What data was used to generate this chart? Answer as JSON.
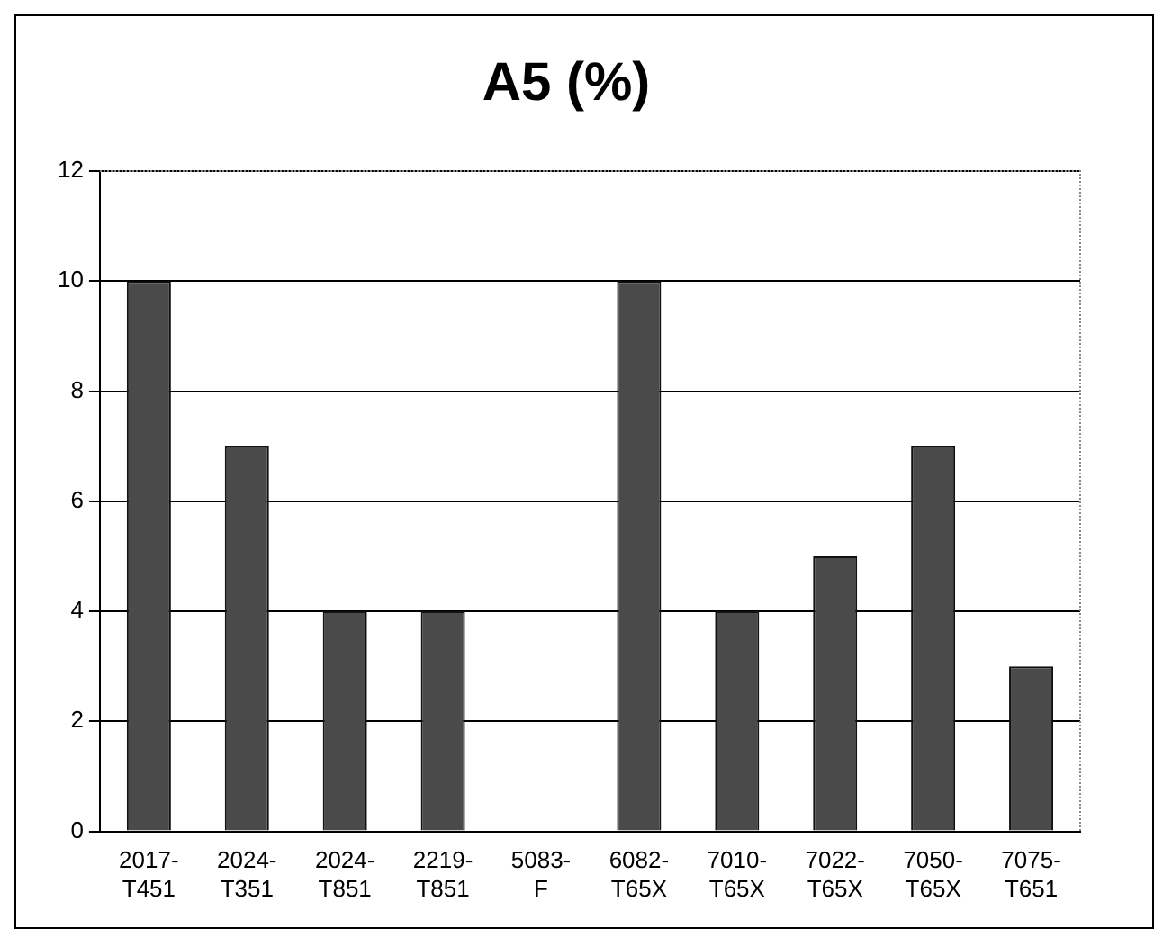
{
  "chart_data": {
    "type": "bar",
    "title": "A5 (%)",
    "categories": [
      "2017-T451",
      "2024-T351",
      "2024-T851",
      "2219-T851",
      "5083-F",
      "6082-T65X",
      "7010-T65X",
      "7022-T65X",
      "7050-T65X",
      "7075-T651"
    ],
    "values": [
      10,
      7,
      4,
      4,
      null,
      10,
      4,
      5,
      7,
      3
    ],
    "color": "#4a4a4a",
    "ylim": [
      0,
      12
    ],
    "yticks": [
      0,
      2,
      4,
      6,
      8,
      10,
      12
    ],
    "grid": "y"
  }
}
